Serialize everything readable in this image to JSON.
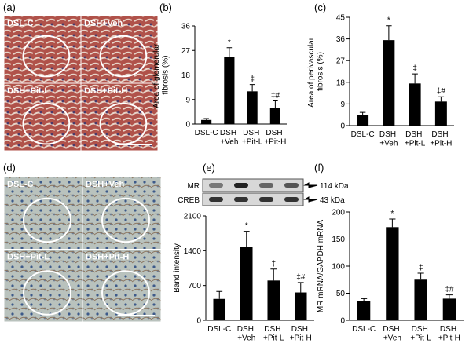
{
  "images": [
    {
      "panel": "(a)",
      "labels": [
        "DSL-C",
        "DSH+Veh",
        "DSH+Pit-L",
        "DSH+Pit-H"
      ]
    },
    {
      "panel": "(d)",
      "labels": [
        "DSL-C",
        "DSH+Veh",
        "DSH+Pit-L",
        "DSH+Pit-H"
      ]
    }
  ],
  "chart_data": [
    {
      "type": "bar",
      "panel": "(b)",
      "ylabel": "Area of glomerular fibrosis (%)",
      "categories": [
        "DSL-C",
        "DSH +Veh",
        "DSH +Pit-L",
        "DSH +Pit-H"
      ],
      "values": [
        1.5,
        24.5,
        12,
        6
      ],
      "errors": [
        0.5,
        3.5,
        2.5,
        2.5
      ],
      "annotations": [
        null,
        "*",
        "‡",
        "‡#"
      ],
      "color": "#000000",
      "ylim": [
        0,
        36
      ],
      "yticks": [
        0,
        9,
        18,
        27,
        36
      ]
    },
    {
      "type": "bar",
      "panel": "(c)",
      "ylabel": "Area of perivascular fibrosis (%)",
      "categories": [
        "DSL-C",
        "DSH +Veh",
        "DSH +Pit-L",
        "DSH +Pit-H"
      ],
      "values": [
        4.5,
        35.5,
        17.5,
        10
      ],
      "errors": [
        1,
        6,
        4,
        2
      ],
      "annotations": [
        null,
        "*",
        "‡",
        "‡#"
      ],
      "color": "#000000",
      "ylim": [
        0,
        45
      ],
      "yticks": [
        0,
        9,
        18,
        27,
        36,
        45
      ]
    },
    {
      "type": "bar",
      "panel": "(e)",
      "ylabel": "Band intensity",
      "blot": {
        "rows": [
          "MR",
          "CREB"
        ],
        "sizes": [
          "114 kDa",
          "43 kDa"
        ]
      },
      "categories": [
        "DSL-C",
        "DSH +Veh",
        "DSH +Pit-L",
        "DSH +Pit-H"
      ],
      "values": [
        430,
        1470,
        800,
        560
      ],
      "errors": [
        150,
        320,
        230,
        200
      ],
      "annotations": [
        null,
        "*",
        "‡",
        "‡#"
      ],
      "color": "#000000",
      "ylim": [
        0,
        2100
      ],
      "yticks": [
        0,
        700,
        1400,
        2100
      ]
    },
    {
      "type": "bar",
      "panel": "(f)",
      "ylabel": "MR mRNA/GAPDH mRNA",
      "categories": [
        "DSL-C",
        "DSH +Veh",
        "DSH +Pit-L",
        "DSH +Pit-H"
      ],
      "values": [
        35,
        172,
        75,
        40
      ],
      "errors": [
        5,
        15,
        12,
        7
      ],
      "annotations": [
        null,
        "*",
        "‡",
        "‡#"
      ],
      "color": "#000000",
      "ylim": [
        0,
        200
      ],
      "yticks": [
        0,
        50,
        100,
        150,
        200
      ]
    }
  ]
}
